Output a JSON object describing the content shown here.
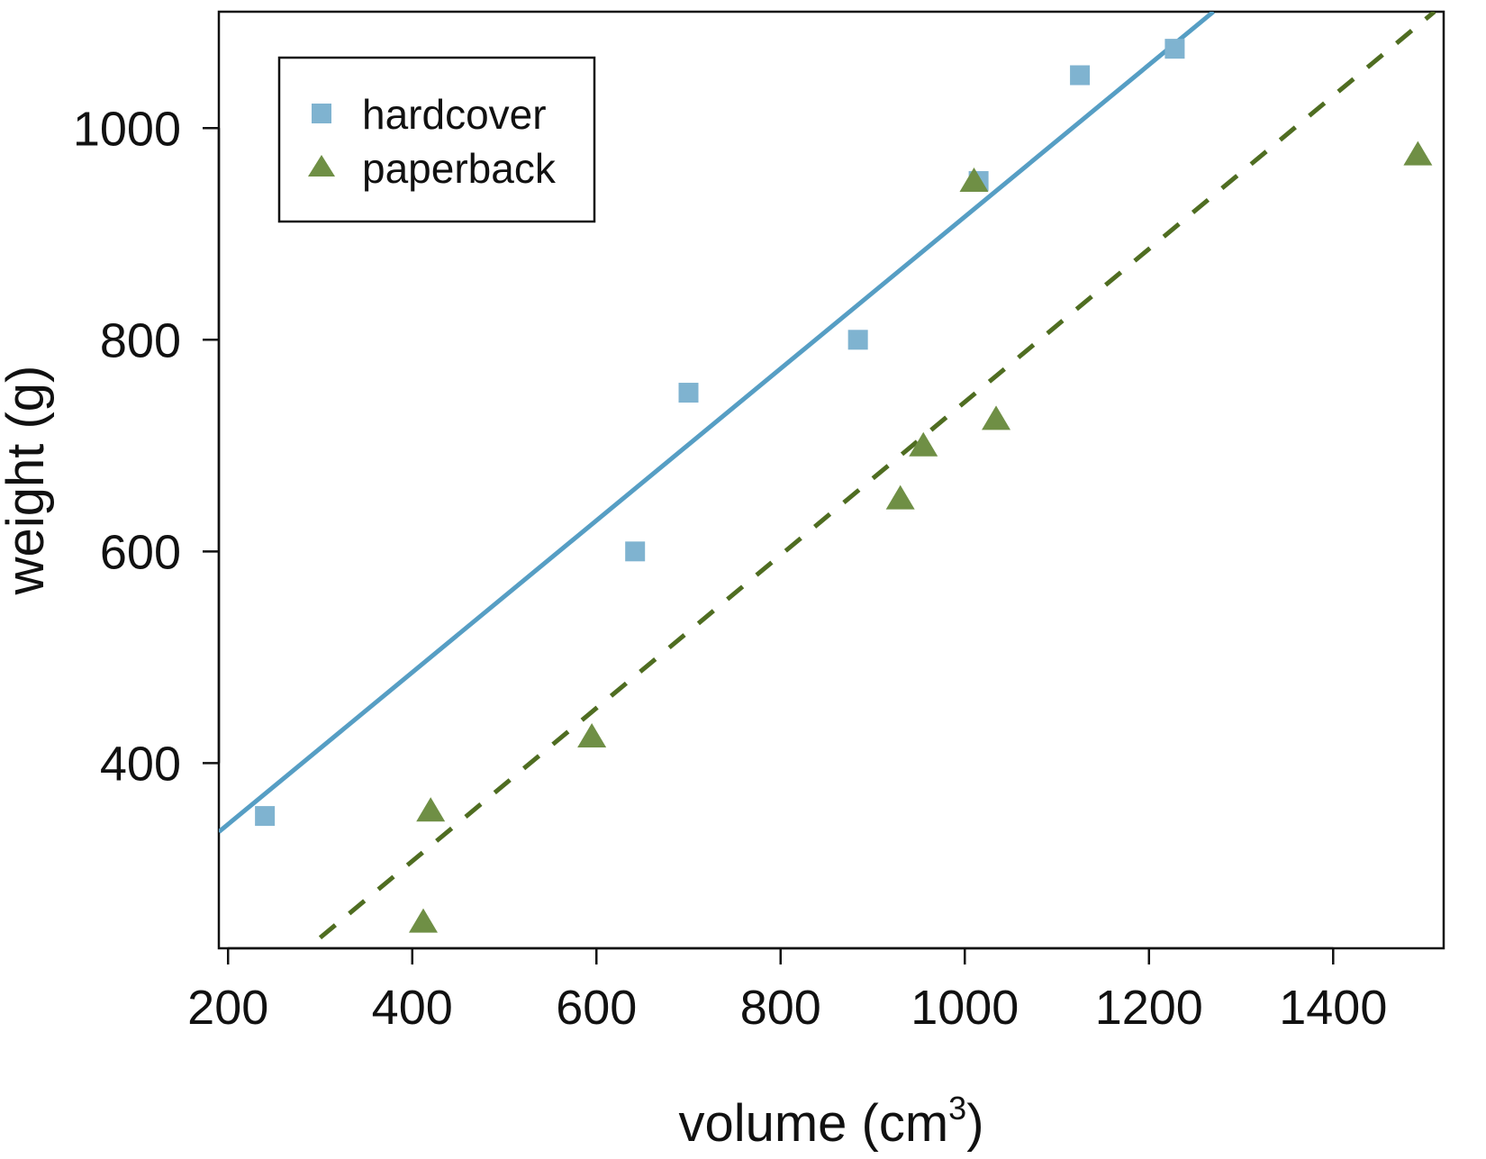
{
  "chart_data": {
    "type": "scatter",
    "xlabel": "volume (cm",
    "xlabel_superscript": "3",
    "xlabel_suffix": ")",
    "ylabel": "weight (g)",
    "xlim": [
      190,
      1520
    ],
    "ylim": [
      225,
      1110
    ],
    "x_ticks": [
      200,
      400,
      600,
      800,
      1000,
      1200,
      1400
    ],
    "y_ticks": [
      400,
      600,
      800,
      1000
    ],
    "legend_position": "top-left",
    "grid": false,
    "series": [
      {
        "name": "hardcover",
        "marker": "square",
        "color": "#7fb3d0",
        "points": [
          {
            "x": 240,
            "y": 350
          },
          {
            "x": 642,
            "y": 600
          },
          {
            "x": 700,
            "y": 750
          },
          {
            "x": 884,
            "y": 800
          },
          {
            "x": 1015,
            "y": 950
          },
          {
            "x": 1125,
            "y": 1050
          },
          {
            "x": 1228,
            "y": 1075
          }
        ],
        "fit_line": {
          "style": "solid",
          "color": "#569ec4",
          "x": [
            190,
            1270
          ],
          "y": [
            335,
            1110
          ]
        }
      },
      {
        "name": "paperback",
        "marker": "triangle",
        "color": "#6f8f45",
        "points": [
          {
            "x": 412,
            "y": 250
          },
          {
            "x": 420,
            "y": 355
          },
          {
            "x": 595,
            "y": 425
          },
          {
            "x": 930,
            "y": 650
          },
          {
            "x": 955,
            "y": 700
          },
          {
            "x": 1010,
            "y": 950
          },
          {
            "x": 1034,
            "y": 725
          },
          {
            "x": 1492,
            "y": 975
          }
        ],
        "fit_line": {
          "style": "dashed",
          "color": "#4f6d21",
          "x": [
            300,
            1510
          ],
          "y": [
            235,
            1110
          ]
        }
      }
    ]
  }
}
